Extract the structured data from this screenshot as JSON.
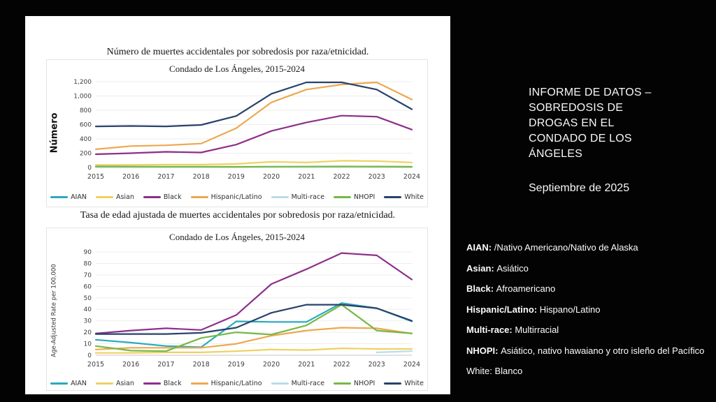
{
  "background_color": "#030303",
  "panel_color": "#ffffff",
  "right_panel": {
    "title": "INFORME DE DATOS – SOBREDOSIS DE DROGAS EN EL CONDADO DE LOS ÁNGELES",
    "date": "Septiembre de 2025",
    "definitions": [
      {
        "term": "AIAN:",
        "definition": "/Nativo Americano/Nativo de Alaska",
        "bold_term": true
      },
      {
        "term": "Asian:",
        "definition": "Asiático",
        "bold_term": true
      },
      {
        "term": "Black:",
        "definition": "Afroamericano",
        "bold_term": true
      },
      {
        "term": "Hispanic/Latino:",
        "definition": "Hispano/Latino",
        "bold_term": true
      },
      {
        "term": "Multi-race:",
        "definition": "Multirracial",
        "bold_term": true
      },
      {
        "term": "NHOPI:",
        "definition": "Asiático, nativo hawaiano y otro isleño del Pacífico",
        "bold_term": true
      },
      {
        "term": "White:",
        "definition": "Blanco",
        "bold_term": false
      }
    ]
  },
  "chart_data": [
    {
      "type": "line",
      "title": "Número de muertes accidentales por sobredosis por raza/etnicidad.",
      "subtitle": "Condado de Los Ángeles, 2015-2024",
      "xlabel": "",
      "ylabel": "Número",
      "x": [
        2015,
        2016,
        2017,
        2018,
        2019,
        2020,
        2021,
        2022,
        2023,
        2024
      ],
      "ylim": [
        0,
        1200
      ],
      "ytick_step": 200,
      "ytick_labels": [
        "0",
        "200",
        "400",
        "600",
        "800",
        "1,000",
        "1,200"
      ],
      "grid": true,
      "legend_position": "bottom",
      "series": [
        {
          "name": "AIAN",
          "color": "#2aa9bf",
          "values": [
            10,
            9,
            8,
            8,
            8,
            10,
            10,
            12,
            12,
            10
          ]
        },
        {
          "name": "Asian",
          "color": "#eed15f",
          "values": [
            35,
            35,
            40,
            40,
            50,
            80,
            70,
            95,
            90,
            70
          ]
        },
        {
          "name": "Black",
          "color": "#8e2f8c",
          "values": [
            185,
            200,
            220,
            210,
            320,
            510,
            630,
            725,
            710,
            530
          ]
        },
        {
          "name": "Hispanic/Latino",
          "color": "#eda84f",
          "values": [
            255,
            300,
            310,
            335,
            550,
            910,
            1090,
            1160,
            1190,
            950
          ]
        },
        {
          "name": "Multi-race",
          "color": "#b9dce8",
          "values": [
            4,
            4,
            4,
            4,
            5,
            6,
            6,
            8,
            8,
            8
          ]
        },
        {
          "name": "NHOPI",
          "color": "#77b843",
          "values": [
            15,
            13,
            12,
            12,
            10,
            12,
            13,
            15,
            14,
            10
          ]
        },
        {
          "name": "White",
          "color": "#28426b",
          "values": [
            575,
            580,
            575,
            595,
            720,
            1030,
            1190,
            1190,
            1090,
            815
          ]
        }
      ]
    },
    {
      "type": "line",
      "title": "Tasa de edad ajustada de muertes accidentales por sobredosis por raza/etnicidad.",
      "subtitle": "Condado de Los Ángeles, 2015-2024",
      "xlabel": "",
      "ylabel": "Age-Adjusted Rate per 100,000",
      "x": [
        2015,
        2016,
        2017,
        2018,
        2019,
        2020,
        2021,
        2022,
        2023,
        2024
      ],
      "ylim": [
        0,
        90
      ],
      "ytick_step": 10,
      "ytick_labels": [
        "0",
        "10",
        "20",
        "30",
        "40",
        "50",
        "60",
        "70",
        "80",
        "90"
      ],
      "grid": true,
      "legend_position": "bottom",
      "series": [
        {
          "name": "AIAN",
          "color": "#2aa9bf",
          "values": [
            13.5,
            11,
            8,
            7,
            29.5,
            29,
            29,
            45.5,
            41,
            29.5
          ]
        },
        {
          "name": "Asian",
          "color": "#eed15f",
          "values": [
            2,
            2,
            2.5,
            2.5,
            3.5,
            5,
            4.5,
            6,
            5.5,
            5.5
          ]
        },
        {
          "name": "Black",
          "color": "#8e2f8c",
          "values": [
            19,
            21.5,
            23.5,
            22,
            35,
            62,
            75,
            89,
            87,
            66
          ]
        },
        {
          "name": "Hispanic/Latino",
          "color": "#eda84f",
          "values": [
            5,
            6.5,
            6.5,
            6.5,
            10,
            17,
            21.5,
            24,
            23.5,
            19
          ]
        },
        {
          "name": "Multi-race",
          "color": "#b9dce8",
          "values": [
            null,
            null,
            null,
            null,
            null,
            null,
            null,
            null,
            2.5,
            3.5
          ]
        },
        {
          "name": "NHOPI",
          "color": "#77b843",
          "values": [
            8,
            4,
            3.5,
            15,
            20,
            18,
            26,
            44,
            21.5,
            19
          ]
        },
        {
          "name": "White",
          "color": "#28426b",
          "values": [
            18.5,
            18.5,
            18.5,
            19.5,
            24,
            37,
            44,
            44,
            41,
            30
          ]
        }
      ]
    }
  ]
}
